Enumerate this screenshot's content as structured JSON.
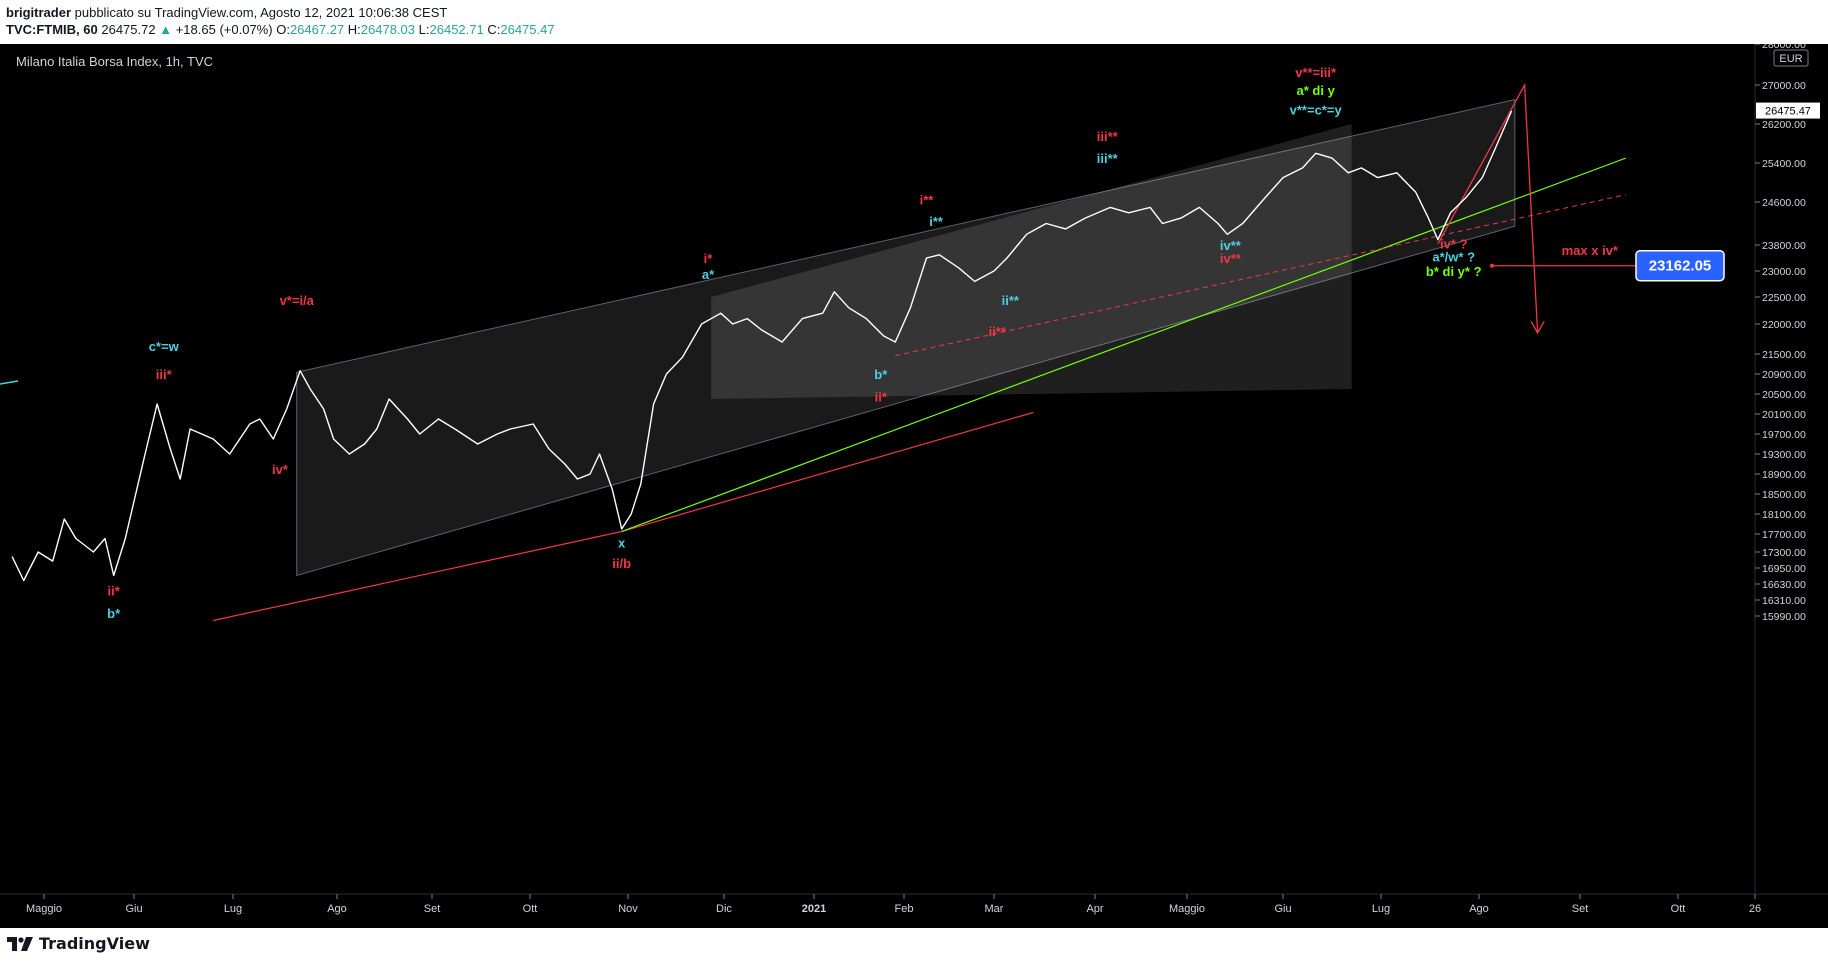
{
  "header": {
    "author": "brigitrader",
    "published": "pubblicato su TradingView.com, Agosto 12, 2021 10:06:38 CEST",
    "symbol": "TVC:FTMIB, 60",
    "last": "26475.72",
    "change": "+18.65 (+0.07%)",
    "o_label": "O:",
    "o_value": "26467.27",
    "h_label": "H:",
    "h_value": "26478.03",
    "l_label": "L:",
    "l_value": "26452.71",
    "c_label": "C:",
    "c_value": "26475.47"
  },
  "footer": {
    "brand": "TradingView"
  },
  "chart_data": {
    "type": "line",
    "title": "Milano Italia Borsa Index, 1h, TVC",
    "currency": "EUR",
    "last_price_label": "26475.47",
    "marker_price_label": "23162.05",
    "y_axis": {
      "ticks": [
        28000,
        27000,
        26200,
        25400,
        24600,
        23800,
        23000,
        22500,
        22000,
        21500,
        20900,
        20500,
        20100,
        19700,
        19300,
        18900,
        18500,
        18100,
        17700,
        17300,
        16950,
        16630,
        16310,
        15990
      ],
      "tick_labels": [
        "28000.00",
        "27000.00",
        "26200.00",
        "25400.00",
        "24600.00",
        "23800.00",
        "23000.00",
        "22500.00",
        "22000.00",
        "21500.00",
        "20900.00",
        "20500.00",
        "20100.00",
        "19700.00",
        "19300.00",
        "18900.00",
        "18500.00",
        "18100.00",
        "17700.00",
        "17300.00",
        "16950.00",
        "16630.00",
        "16310.00",
        "15990.00"
      ]
    },
    "x_axis": {
      "ticks": [
        "2020-05-01",
        "2020-06-01",
        "2020-07-01",
        "2020-08-01",
        "2020-09-01",
        "2020-10-01",
        "2020-11-01",
        "2020-12-01",
        "2021-01-01",
        "2021-02-01",
        "2021-03-01",
        "2021-04-01",
        "2021-05-01",
        "2021-06-01",
        "2021-07-01",
        "2021-08-01",
        "2021-09-01",
        "2021-10-01",
        "2021-11-01"
      ],
      "tick_labels": [
        "Maggio",
        "Giu",
        "Lug",
        "Ago",
        "Set",
        "Ott",
        "Nov",
        "Dic",
        "2021",
        "Feb",
        "Mar",
        "Apr",
        "Maggio",
        "Giu",
        "Lug",
        "Ago",
        "Set",
        "Ott",
        "26"
      ]
    },
    "series": [
      {
        "values": [
          [
            "2020-04-20",
            17200
          ],
          [
            "2020-04-24",
            16700
          ],
          [
            "2020-04-29",
            17300
          ],
          [
            "2020-05-04",
            17100
          ],
          [
            "2020-05-08",
            18000
          ],
          [
            "2020-05-12",
            17600
          ],
          [
            "2020-05-18",
            17300
          ],
          [
            "2020-05-22",
            17600
          ],
          [
            "2020-05-25",
            16800
          ],
          [
            "2020-05-29",
            17600
          ],
          [
            "2020-06-04",
            19200
          ],
          [
            "2020-06-08",
            20300
          ],
          [
            "2020-06-12",
            19400
          ],
          [
            "2020-06-15",
            18800
          ],
          [
            "2020-06-18",
            19800
          ],
          [
            "2020-06-25",
            19600
          ],
          [
            "2020-06-30",
            19300
          ],
          [
            "2020-07-06",
            19900
          ],
          [
            "2020-07-09",
            20000
          ],
          [
            "2020-07-13",
            19600
          ],
          [
            "2020-07-17",
            20200
          ],
          [
            "2020-07-21",
            21000
          ],
          [
            "2020-07-24",
            20600
          ],
          [
            "2020-07-28",
            20200
          ],
          [
            "2020-07-31",
            19600
          ],
          [
            "2020-08-05",
            19300
          ],
          [
            "2020-08-10",
            19500
          ],
          [
            "2020-08-14",
            19800
          ],
          [
            "2020-08-18",
            20400
          ],
          [
            "2020-08-24",
            20000
          ],
          [
            "2020-08-28",
            19700
          ],
          [
            "2020-09-03",
            20000
          ],
          [
            "2020-09-08",
            19800
          ],
          [
            "2020-09-15",
            19500
          ],
          [
            "2020-09-21",
            19700
          ],
          [
            "2020-09-25",
            19800
          ],
          [
            "2020-10-02",
            19900
          ],
          [
            "2020-10-07",
            19400
          ],
          [
            "2020-10-12",
            19100
          ],
          [
            "2020-10-16",
            18800
          ],
          [
            "2020-10-20",
            18900
          ],
          [
            "2020-10-23",
            19300
          ],
          [
            "2020-10-27",
            18600
          ],
          [
            "2020-10-30",
            17800
          ],
          [
            "2020-11-02",
            18100
          ],
          [
            "2020-11-05",
            18700
          ],
          [
            "2020-11-09",
            20300
          ],
          [
            "2020-11-13",
            20900
          ],
          [
            "2020-11-18",
            21400
          ],
          [
            "2020-11-24",
            22000
          ],
          [
            "2020-11-30",
            22200
          ],
          [
            "2020-12-04",
            22000
          ],
          [
            "2020-12-09",
            22100
          ],
          [
            "2020-12-14",
            21900
          ],
          [
            "2020-12-21",
            21700
          ],
          [
            "2020-12-28",
            22100
          ],
          [
            "2021-01-04",
            22200
          ],
          [
            "2021-01-08",
            22600
          ],
          [
            "2021-01-13",
            22300
          ],
          [
            "2021-01-19",
            22100
          ],
          [
            "2021-01-25",
            21800
          ],
          [
            "2021-01-29",
            21700
          ],
          [
            "2021-02-03",
            22300
          ],
          [
            "2021-02-08",
            23400
          ],
          [
            "2021-02-12",
            23500
          ],
          [
            "2021-02-18",
            23100
          ],
          [
            "2021-02-23",
            22800
          ],
          [
            "2021-03-01",
            23000
          ],
          [
            "2021-03-05",
            23400
          ],
          [
            "2021-03-11",
            24000
          ],
          [
            "2021-03-17",
            24200
          ],
          [
            "2021-03-23",
            24100
          ],
          [
            "2021-03-29",
            24300
          ],
          [
            "2021-04-06",
            24500
          ],
          [
            "2021-04-12",
            24400
          ],
          [
            "2021-04-19",
            24500
          ],
          [
            "2021-04-23",
            24200
          ],
          [
            "2021-04-29",
            24300
          ],
          [
            "2021-05-05",
            24500
          ],
          [
            "2021-05-11",
            24200
          ],
          [
            "2021-05-14",
            24000
          ],
          [
            "2021-05-19",
            24200
          ],
          [
            "2021-05-25",
            24600
          ],
          [
            "2021-06-01",
            25100
          ],
          [
            "2021-06-07",
            25300
          ],
          [
            "2021-06-11",
            25600
          ],
          [
            "2021-06-16",
            25500
          ],
          [
            "2021-06-21",
            25200
          ],
          [
            "2021-06-25",
            25300
          ],
          [
            "2021-06-30",
            25100
          ],
          [
            "2021-07-06",
            25200
          ],
          [
            "2021-07-12",
            24800
          ],
          [
            "2021-07-16",
            24300
          ],
          [
            "2021-07-19",
            23900
          ],
          [
            "2021-07-23",
            24400
          ],
          [
            "2021-07-28",
            24700
          ],
          [
            "2021-08-02",
            25100
          ],
          [
            "2021-08-06",
            25700
          ],
          [
            "2021-08-11",
            26470
          ]
        ]
      }
    ],
    "annotations": [
      {
        "text": "v*=i/a",
        "color": "#f23645",
        "x": "2020-07-20",
        "y": 22350
      },
      {
        "text": "c*=w",
        "color": "#4dd0e1",
        "x": "2020-06-10",
        "y": 21550
      },
      {
        "text": "iii*",
        "color": "#f23645",
        "x": "2020-06-10",
        "y": 20800
      },
      {
        "text": "iv*",
        "color": "#f23645",
        "x": "2020-07-15",
        "y": 18900
      },
      {
        "text": "ii*",
        "color": "#f23645",
        "x": "2020-05-25",
        "y": 16400
      },
      {
        "text": "b*",
        "color": "#4dd0e1",
        "x": "2020-05-25",
        "y": 15950
      },
      {
        "text": "x",
        "color": "#4dd0e1",
        "x": "2020-10-30",
        "y": 17400
      },
      {
        "text": "ii/b",
        "color": "#f23645",
        "x": "2020-10-30",
        "y": 16950
      },
      {
        "text": "i*",
        "color": "#f23645",
        "x": "2020-11-26",
        "y": 23250
      },
      {
        "text": "a*",
        "color": "#4dd0e1",
        "x": "2020-11-26",
        "y": 22850
      },
      {
        "text": "b*",
        "color": "#4dd0e1",
        "x": "2021-01-24",
        "y": 20800
      },
      {
        "text": "ii*",
        "color": "#f23645",
        "x": "2021-01-24",
        "y": 20350
      },
      {
        "text": "i**",
        "color": "#f23645",
        "x": "2021-02-08",
        "y": 24550
      },
      {
        "text": "i**",
        "color": "#4dd0e1",
        "x": "2021-02-11",
        "y": 24150
      },
      {
        "text": "ii**",
        "color": "#4dd0e1",
        "x": "2021-03-06",
        "y": 22350
      },
      {
        "text": "ii**",
        "color": "#f23645",
        "x": "2021-03-02",
        "y": 21800
      },
      {
        "text": "iii**",
        "color": "#f23645",
        "x": "2021-04-05",
        "y": 25850
      },
      {
        "text": "iii**",
        "color": "#4dd0e1",
        "x": "2021-04-05",
        "y": 25400
      },
      {
        "text": "iv**",
        "color": "#4dd0e1",
        "x": "2021-05-15",
        "y": 23650
      },
      {
        "text": "iv**",
        "color": "#f23645",
        "x": "2021-05-15",
        "y": 23250
      },
      {
        "text": "v**=iii*",
        "color": "#f23645",
        "x": "2021-06-11",
        "y": 27200
      },
      {
        "text": "a* di y",
        "color": "#76ff03",
        "x": "2021-06-11",
        "y": 26800
      },
      {
        "text": "v**=c*=y",
        "color": "#4dd0e1",
        "x": "2021-06-11",
        "y": 26400
      },
      {
        "text": "iv* ?",
        "color": "#f23645",
        "x": "2021-07-24",
        "y": 23700
      },
      {
        "text": "a*/w* ?",
        "color": "#4dd0e1",
        "x": "2021-07-24",
        "y": 23300
      },
      {
        "text": "b* di y* ?",
        "color": "#76ff03",
        "x": "2021-07-24",
        "y": 22900
      },
      {
        "text": "max x iv*",
        "color": "#f23645",
        "x": "2021-09-04",
        "y": 23500
      }
    ]
  }
}
